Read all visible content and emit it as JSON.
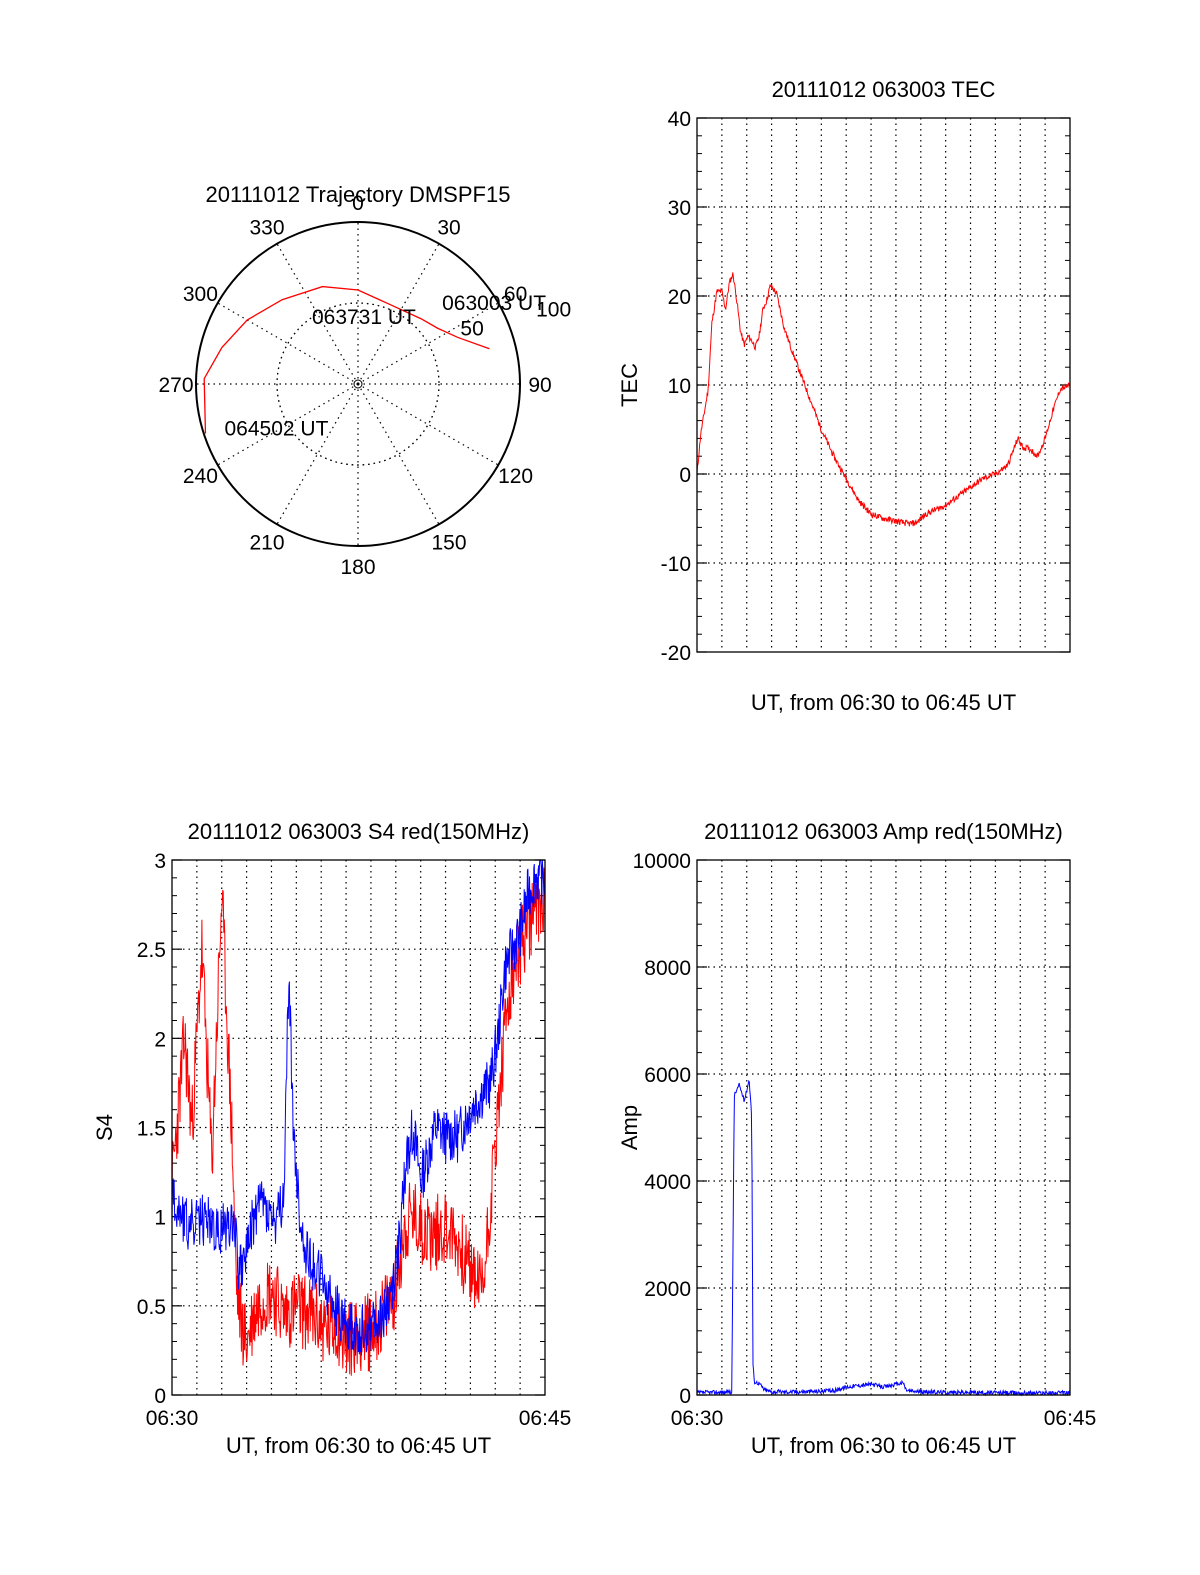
{
  "chart_data": [
    {
      "type": "polar",
      "title": "20111012 Trajectory DMSPF15",
      "azimuth_labels": [
        "0",
        "30",
        "60",
        "90",
        "120",
        "150",
        "180",
        "210",
        "240",
        "270",
        "300",
        "330"
      ],
      "elevation_labels": [
        "50",
        "100"
      ],
      "elevation_label_values": [
        50,
        100
      ],
      "trajectory_color": "#ff0000",
      "trajectory": [
        {
          "az": 75,
          "r": 0.84
        },
        {
          "az": 65,
          "r": 0.68
        },
        {
          "az": 55,
          "r": 0.6
        },
        {
          "az": 44,
          "r": 0.56
        },
        {
          "az": 20,
          "r": 0.53
        },
        {
          "az": 0,
          "r": 0.58
        },
        {
          "az": 340,
          "r": 0.64
        },
        {
          "az": 318,
          "r": 0.7
        },
        {
          "az": 300,
          "r": 0.79
        },
        {
          "az": 285,
          "r": 0.87
        },
        {
          "az": 272,
          "r": 0.95
        },
        {
          "az": 252,
          "r": 0.99
        }
      ],
      "annotations": [
        {
          "text": "063003 UT",
          "az": 59,
          "r": 0.98
        },
        {
          "text": "063731 UT",
          "az": 5,
          "r": 0.42
        },
        {
          "text": "064502 UT",
          "az": 242,
          "r": 0.57
        }
      ]
    },
    {
      "type": "line",
      "title": "20111012 063003 TEC",
      "xlabel": "UT, from 06:30 to 06:45 UT",
      "ylabel": "TEC",
      "xlim": [
        0,
        15
      ],
      "ylim": [
        -20,
        40
      ],
      "yticks": [
        -20,
        -10,
        0,
        10,
        20,
        30,
        40
      ],
      "xticks": [],
      "grid_x_count": 14,
      "grid": true,
      "series": [
        {
          "color": "#ff0000",
          "noise": 0.35,
          "x": [
            0,
            0.15,
            0.3,
            0.45,
            0.6,
            0.8,
            1.0,
            1.15,
            1.3,
            1.45,
            1.6,
            1.75,
            1.9,
            2.05,
            2.2,
            2.35,
            2.5,
            2.65,
            2.8,
            2.95,
            3.2,
            3.5,
            3.8,
            4.2,
            4.6,
            5.0,
            5.5,
            6.0,
            6.5,
            7.0,
            7.5,
            8.0,
            8.5,
            8.8,
            9.2,
            9.6,
            10.0,
            10.5,
            11.0,
            11.5,
            12.0,
            12.5,
            12.7,
            12.9,
            13.1,
            13.4,
            13.7,
            14.0,
            14.3,
            14.6,
            15.0
          ],
          "values": [
            0,
            4.5,
            7,
            9.5,
            17,
            20.5,
            20.5,
            18.5,
            21.5,
            22.5,
            19.5,
            16,
            14.5,
            15.5,
            15,
            14.2,
            15.5,
            18.5,
            19.5,
            21.2,
            20.3,
            16.5,
            14,
            11,
            8,
            5,
            2,
            -0.5,
            -3,
            -4.5,
            -5,
            -5.3,
            -5.6,
            -5.5,
            -4.5,
            -4,
            -3.5,
            -2.5,
            -1.5,
            -0.5,
            0,
            1,
            2.5,
            4,
            3,
            2.8,
            2,
            4,
            7,
            9.5,
            10
          ]
        }
      ]
    },
    {
      "type": "line",
      "title": "20111012 063003 S4 red(150MHz)",
      "xlabel": "UT, from 06:30 to 06:45 UT",
      "ylabel": "S4",
      "xlim": [
        0,
        15
      ],
      "ylim": [
        0,
        3
      ],
      "yticks": [
        0,
        0.5,
        1,
        1.5,
        2,
        2.5,
        3
      ],
      "ytick_labels": [
        "0",
        "0.5",
        "1",
        "1.5",
        "2",
        "2.5",
        "3"
      ],
      "xticks": [
        0,
        15
      ],
      "xtick_labels": [
        "06:30",
        "06:45"
      ],
      "grid_x_count": 14,
      "grid": true,
      "series": [
        {
          "color": "#ff0000",
          "noise": 0.22,
          "x": [
            0,
            0.2,
            0.5,
            0.8,
            1.2,
            1.6,
            2.0,
            2.4,
            2.6,
            2.8,
            3.0,
            3.3,
            3.6,
            4.0,
            4.5,
            5.0,
            5.5,
            6.0,
            6.3,
            6.6,
            7.0,
            7.5,
            8.0,
            8.5,
            9.0,
            9.3,
            9.6,
            10.0,
            10.5,
            11.0,
            11.5,
            12.0,
            12.5,
            13.0,
            13.5,
            14.0,
            14.5,
            15.0
          ],
          "values": [
            1.2,
            1.5,
            2.0,
            1.5,
            2.5,
            1.3,
            2.8,
            1.5,
            0.6,
            0.4,
            0.3,
            0.45,
            0.55,
            0.6,
            0.45,
            0.5,
            0.45,
            0.4,
            0.35,
            0.4,
            0.3,
            0.35,
            0.35,
            0.45,
            0.6,
            0.9,
            1.0,
            0.95,
            0.9,
            0.95,
            0.85,
            0.7,
            0.6,
            1.4,
            2.2,
            2.5,
            2.7,
            2.8
          ]
        },
        {
          "color": "#0000ff",
          "noise": 0.15,
          "x": [
            0,
            0.3,
            0.6,
            1.0,
            1.4,
            1.8,
            2.2,
            2.5,
            2.7,
            3.0,
            3.3,
            3.6,
            3.9,
            4.2,
            4.5,
            4.7,
            4.9,
            5.2,
            5.6,
            6.0,
            6.5,
            7.0,
            7.5,
            8.0,
            8.5,
            8.8,
            9.1,
            9.4,
            9.7,
            10.0,
            10.3,
            10.6,
            11.0,
            11.5,
            12.0,
            12.5,
            12.8,
            13.1,
            13.4,
            13.7,
            14.0,
            14.3,
            14.6,
            15.0
          ],
          "values": [
            1.1,
            1.05,
            0.95,
            0.95,
            1.0,
            0.9,
            0.95,
            1.0,
            0.7,
            0.8,
            1.0,
            1.1,
            1.0,
            0.95,
            1.1,
            2.4,
            1.4,
            0.9,
            0.75,
            0.65,
            0.5,
            0.4,
            0.35,
            0.4,
            0.45,
            0.55,
            0.8,
            1.3,
            1.5,
            1.2,
            1.35,
            1.5,
            1.45,
            1.45,
            1.6,
            1.7,
            1.75,
            2.0,
            2.4,
            2.5,
            2.6,
            2.8,
            2.9,
            2.9
          ]
        }
      ]
    },
    {
      "type": "line",
      "title": "20111012 063003 Amp red(150MHz)",
      "xlabel": "UT, from 06:30 to 06:45 UT",
      "ylabel": "Amp",
      "xlim": [
        0,
        15
      ],
      "ylim": [
        0,
        10000
      ],
      "yticks": [
        0,
        2000,
        4000,
        6000,
        8000,
        10000
      ],
      "ytick_labels": [
        "0",
        "2000",
        "4000",
        "6000",
        "8000",
        "10000"
      ],
      "xticks": [
        0,
        15
      ],
      "xtick_labels": [
        "06:30",
        "06:45"
      ],
      "grid_x_count": 14,
      "grid": true,
      "series": [
        {
          "color": "#0000ff",
          "noise": 40,
          "x": [
            0,
            0.5,
            1.0,
            1.4,
            1.45,
            1.5,
            1.7,
            1.9,
            2.1,
            2.2,
            2.25,
            2.3,
            2.5,
            2.7,
            3.0,
            4.0,
            5.0,
            5.5,
            6.0,
            6.5,
            7.0,
            7.5,
            8.0,
            8.3,
            8.4,
            8.5,
            9.0,
            10.0,
            11.0,
            12.0,
            13.0,
            14.0,
            15.0
          ],
          "values": [
            40,
            50,
            50,
            60,
            3000,
            5600,
            5800,
            5500,
            5900,
            5200,
            600,
            250,
            220,
            100,
            60,
            60,
            70,
            80,
            150,
            180,
            200,
            150,
            200,
            230,
            100,
            80,
            60,
            50,
            50,
            40,
            40,
            40,
            40
          ]
        }
      ]
    }
  ]
}
